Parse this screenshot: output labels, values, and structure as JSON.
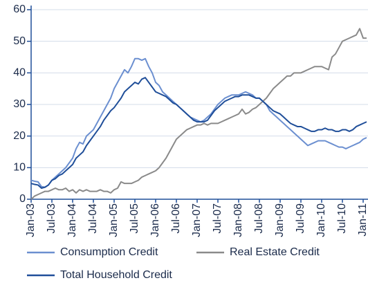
{
  "chart_data": {
    "type": "line",
    "categories": [
      "Jan-03",
      null,
      null,
      null,
      null,
      null,
      "Jul-03",
      null,
      null,
      null,
      null,
      null,
      "Jan-04",
      null,
      null,
      null,
      null,
      null,
      "Jul-04",
      null,
      null,
      null,
      null,
      null,
      "Jan-05",
      null,
      null,
      null,
      null,
      null,
      "Jul-05",
      null,
      null,
      null,
      null,
      null,
      "Jan-06",
      null,
      null,
      null,
      null,
      null,
      "Jul-06",
      null,
      null,
      null,
      null,
      null,
      "Jan-07",
      null,
      null,
      null,
      null,
      null,
      "Jul-07",
      null,
      null,
      null,
      null,
      null,
      "Jan-08",
      null,
      null,
      null,
      null,
      null,
      "Jul-08",
      null,
      null,
      null,
      null,
      null,
      "Jan-09",
      null,
      null,
      null,
      null,
      null,
      "Jul-09",
      null,
      null,
      null,
      null,
      null,
      "Jan-10",
      null,
      null,
      null,
      null,
      null,
      "Jul-10",
      null,
      null,
      null,
      null,
      null,
      "Jan-11",
      null
    ],
    "series": [
      {
        "name": "Consumption Credit",
        "color": "#6b8fd0",
        "values": [
          6,
          5.7,
          5.5,
          4,
          3.8,
          4.5,
          6,
          7,
          8,
          9,
          10,
          11.5,
          13,
          16,
          18,
          17.5,
          20,
          21,
          22,
          24,
          26,
          28,
          30,
          32,
          35,
          37,
          39,
          41,
          40,
          42,
          44.5,
          44.5,
          44,
          44.5,
          42,
          40,
          37,
          36,
          34,
          33,
          32,
          31,
          30,
          29,
          28,
          27,
          26,
          25.5,
          25,
          24.5,
          25,
          26,
          27,
          28.5,
          30,
          31,
          32,
          32.5,
          33,
          33,
          33,
          33.5,
          34,
          33.5,
          33,
          32,
          32,
          31,
          30,
          28,
          27,
          26,
          25,
          24,
          23,
          22,
          21,
          20,
          19,
          18,
          17,
          17.5,
          18,
          18.5,
          18.5,
          18.5,
          18,
          17.5,
          17,
          16.5,
          16.5,
          16,
          16.5,
          17,
          17.5,
          18,
          19,
          19.5
        ]
      },
      {
        "name": "Real Estate Credit",
        "color": "#8a8a8a",
        "values": [
          0,
          1,
          1.5,
          2,
          2.5,
          2.5,
          3,
          3.5,
          3,
          3,
          3.5,
          2.5,
          3,
          2,
          3,
          2.5,
          3,
          2.5,
          2.5,
          2.5,
          3,
          2.5,
          2.5,
          2,
          3,
          3.5,
          5.5,
          5,
          5,
          5,
          5.5,
          6,
          7,
          7.5,
          8,
          8.5,
          9,
          10,
          11.5,
          13,
          15,
          17,
          19,
          20,
          21,
          22,
          22.5,
          23,
          23.5,
          23.5,
          24,
          23.5,
          24,
          24,
          24,
          24.5,
          25,
          25.5,
          26,
          26.5,
          27,
          28.5,
          27,
          27.5,
          28.5,
          29,
          30,
          31,
          32,
          33.5,
          35,
          36,
          37,
          38,
          39,
          39,
          40,
          40,
          40,
          40.5,
          41,
          41.5,
          42,
          42,
          42,
          41.5,
          41,
          45,
          46,
          48,
          50,
          50.5,
          51,
          51.5,
          52,
          54,
          51,
          51
        ]
      },
      {
        "name": "Total Household Credit",
        "color": "#1f4e99",
        "values": [
          5,
          4.7,
          4.5,
          3.5,
          3.8,
          4.5,
          6,
          6.5,
          7.5,
          8,
          9,
          10,
          11,
          13,
          14,
          15,
          17,
          18.5,
          20,
          21.5,
          23,
          25,
          26.5,
          28,
          29,
          30.5,
          32,
          34,
          35,
          36,
          37,
          36.5,
          38,
          38.5,
          37,
          35.5,
          34,
          33.5,
          33,
          32.5,
          31.5,
          30.5,
          30,
          29,
          28,
          27,
          26,
          25,
          24.5,
          24.5,
          24.5,
          25,
          26.5,
          28,
          29,
          30,
          31,
          31.5,
          32,
          32.5,
          32.5,
          33,
          33,
          33,
          32.5,
          32,
          32,
          31,
          30,
          29,
          28,
          27.5,
          27,
          26,
          25,
          24,
          23.5,
          23,
          23,
          22.5,
          22,
          21.5,
          21.5,
          22,
          22,
          22.5,
          22,
          22,
          21.5,
          21.5,
          22,
          22,
          21.5,
          22,
          23,
          23.5,
          24,
          24.5
        ]
      }
    ],
    "ylim": [
      0,
      60
    ],
    "yticks": [
      0,
      10,
      20,
      30,
      40,
      50,
      60
    ],
    "grid": true
  }
}
